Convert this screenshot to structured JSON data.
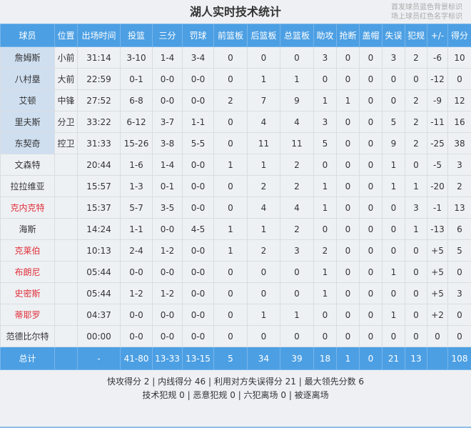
{
  "title": "湖人实时技术统计",
  "legend": [
    "首发球员蓝色背景标识",
    "场上球员红色名字标识"
  ],
  "colors": {
    "header": "#4c9fe3",
    "starter_bg": "#cfdff0",
    "on_court_name": "#e0303a"
  },
  "columns": [
    "球员",
    "位置",
    "出场时间",
    "投篮",
    "三分",
    "罚球",
    "前篮板",
    "后篮板",
    "总篮板",
    "助攻",
    "抢断",
    "盖帽",
    "失误",
    "犯规",
    "+/-",
    "得分"
  ],
  "rows": [
    {
      "starter": true,
      "on_court": false,
      "cells": [
        "詹姆斯",
        "小前",
        "31:14",
        "3-10",
        "1-4",
        "3-4",
        "0",
        "0",
        "0",
        "3",
        "0",
        "0",
        "3",
        "2",
        "-6",
        "10"
      ]
    },
    {
      "starter": true,
      "on_court": false,
      "cells": [
        "八村塁",
        "大前",
        "22:59",
        "0-1",
        "0-0",
        "0-0",
        "0",
        "1",
        "1",
        "0",
        "0",
        "0",
        "0",
        "0",
        "-12",
        "0"
      ]
    },
    {
      "starter": true,
      "on_court": false,
      "cells": [
        "艾顿",
        "中锋",
        "27:52",
        "6-8",
        "0-0",
        "0-0",
        "2",
        "7",
        "9",
        "1",
        "1",
        "0",
        "0",
        "2",
        "-9",
        "12"
      ]
    },
    {
      "starter": true,
      "on_court": false,
      "cells": [
        "里夫斯",
        "分卫",
        "33:22",
        "6-12",
        "3-7",
        "1-1",
        "0",
        "4",
        "4",
        "3",
        "0",
        "0",
        "5",
        "2",
        "-11",
        "16"
      ]
    },
    {
      "starter": true,
      "on_court": false,
      "cells": [
        "东契奇",
        "控卫",
        "31:33",
        "15-26",
        "3-8",
        "5-5",
        "0",
        "11",
        "11",
        "5",
        "0",
        "0",
        "9",
        "2",
        "-25",
        "38"
      ]
    },
    {
      "starter": false,
      "on_court": false,
      "cells": [
        "文森特",
        "",
        "20:44",
        "1-6",
        "1-4",
        "0-0",
        "1",
        "1",
        "2",
        "0",
        "0",
        "0",
        "1",
        "0",
        "-5",
        "3"
      ]
    },
    {
      "starter": false,
      "on_court": false,
      "cells": [
        "拉拉维亚",
        "",
        "15:57",
        "1-3",
        "0-1",
        "0-0",
        "0",
        "2",
        "2",
        "1",
        "0",
        "0",
        "1",
        "1",
        "-20",
        "2"
      ]
    },
    {
      "starter": false,
      "on_court": true,
      "cells": [
        "克内克特",
        "",
        "15:37",
        "5-7",
        "3-5",
        "0-0",
        "0",
        "4",
        "4",
        "1",
        "0",
        "0",
        "0",
        "3",
        "-1",
        "13"
      ]
    },
    {
      "starter": false,
      "on_court": false,
      "cells": [
        "海斯",
        "",
        "14:24",
        "1-1",
        "0-0",
        "4-5",
        "1",
        "1",
        "2",
        "0",
        "0",
        "0",
        "0",
        "1",
        "-13",
        "6"
      ]
    },
    {
      "starter": false,
      "on_court": true,
      "cells": [
        "克莱伯",
        "",
        "10:13",
        "2-4",
        "1-2",
        "0-0",
        "1",
        "2",
        "3",
        "2",
        "0",
        "0",
        "0",
        "0",
        "+5",
        "5"
      ]
    },
    {
      "starter": false,
      "on_court": true,
      "cells": [
        "布朗尼",
        "",
        "05:44",
        "0-0",
        "0-0",
        "0-0",
        "0",
        "0",
        "0",
        "1",
        "0",
        "0",
        "1",
        "0",
        "+5",
        "0"
      ]
    },
    {
      "starter": false,
      "on_court": true,
      "cells": [
        "史密斯",
        "",
        "05:44",
        "1-2",
        "1-2",
        "0-0",
        "0",
        "0",
        "0",
        "1",
        "0",
        "0",
        "0",
        "0",
        "+5",
        "3"
      ]
    },
    {
      "starter": false,
      "on_court": true,
      "cells": [
        "蒂耶罗",
        "",
        "04:37",
        "0-0",
        "0-0",
        "0-0",
        "0",
        "1",
        "1",
        "0",
        "0",
        "0",
        "1",
        "0",
        "+2",
        "0"
      ]
    },
    {
      "starter": false,
      "on_court": false,
      "cells": [
        "范德比尔特",
        "",
        "00:00",
        "0-0",
        "0-0",
        "0-0",
        "0",
        "0",
        "0",
        "0",
        "0",
        "0",
        "0",
        "0",
        "0",
        "0"
      ]
    }
  ],
  "totals": [
    "总计",
    "",
    "-",
    "41-80",
    "13-33",
    "13-15",
    "5",
    "34",
    "39",
    "18",
    "1",
    "0",
    "21",
    "13",
    "",
    "108"
  ],
  "footer": [
    "快攻得分 2 | 内线得分 46 | 利用对方失误得分 21 | 最大领先分数 6",
    "技术犯规 0 | 恶意犯规 0 | 六犯离场 0 | 被逐离场"
  ]
}
